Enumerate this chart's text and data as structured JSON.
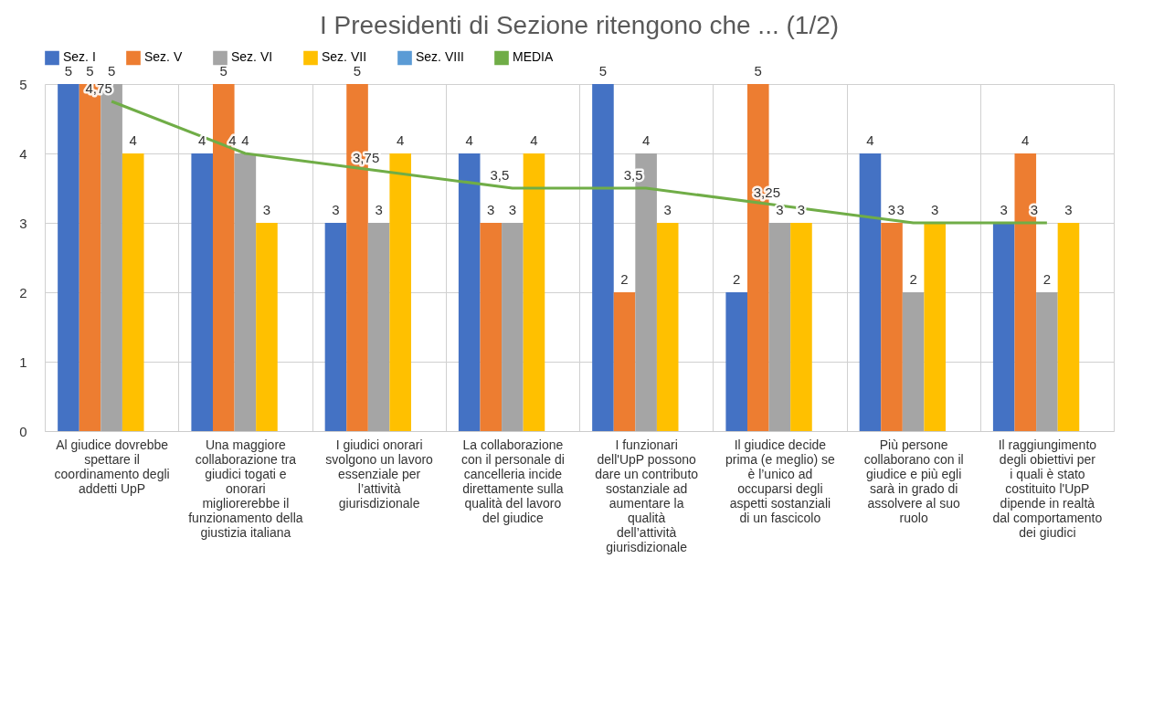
{
  "chart_data": {
    "type": "bar",
    "title": "I Preesidenti di Sezione ritengono che ... (1/2)",
    "categories": [
      "Al giudice dovrebbe spettare il coordinamento degli addetti UpP",
      "Una maggiore collaborazione tra giudici togati e onorari migliorerebbe il funzionamento della giustizia italiana",
      "I giudici onorari svolgono un lavoro essenziale per l’attività giurisdizionale",
      "La collaborazione con il personale di cancelleria incide direttamente sulla qualità del lavoro del giudice",
      "I funzionari dell'UpP possono dare un contributo sostanziale ad aumentare la qualità dell’attività giurisdizionale",
      "Il giudice decide prima (e meglio) se è l’unico ad occuparsi degli aspetti sostanziali di un fascicolo",
      "Più persone collaborano con il giudice e più egli sarà in grado di assolvere al suo ruolo",
      "Il raggiungimento degli obiettivi per i quali è stato costituito l'UpP dipende in realtà dal comportamento dei giudici"
    ],
    "series": [
      {
        "name": "Sez. I",
        "color": "#4472c4",
        "values": [
          5,
          4,
          3,
          4,
          5,
          2,
          4,
          3
        ],
        "value_labels": [
          "5",
          "4",
          "3",
          "4",
          "5",
          "2",
          "4",
          "3"
        ]
      },
      {
        "name": "Sez. V",
        "color": "#ed7d31",
        "values": [
          5,
          5,
          5,
          3,
          2,
          5,
          3,
          4
        ],
        "value_labels": [
          "5",
          "5",
          "5",
          "3",
          "2",
          "5",
          "3",
          "4"
        ]
      },
      {
        "name": "Sez. VI",
        "color": "#a5a5a5",
        "values": [
          5,
          4,
          3,
          3,
          4,
          3,
          2,
          2
        ],
        "value_labels": [
          "5",
          "4",
          "3",
          "3",
          "4",
          "3",
          "2",
          "2"
        ]
      },
      {
        "name": "Sez. VII",
        "color": "#ffc000",
        "values": [
          4,
          3,
          4,
          4,
          3,
          3,
          3,
          3
        ],
        "value_labels": [
          "4",
          "3",
          "4",
          "4",
          "3",
          "3",
          "3",
          "3"
        ]
      },
      {
        "name": "Sez. VIII",
        "color": "#5b9bd5",
        "values": [
          null,
          null,
          null,
          null,
          null,
          null,
          null,
          null
        ]
      },
      {
        "name": "MEDIA",
        "type": "line",
        "color": "#70ad47",
        "values": [
          4.75,
          4,
          3.75,
          3.5,
          3.5,
          3.25,
          3,
          3
        ],
        "value_labels": [
          "4,75",
          "4",
          "3,75",
          "3,5",
          "3,5",
          "3,25",
          "3",
          "3"
        ]
      }
    ],
    "ylim": [
      0,
      5
    ],
    "yticks": [
      0,
      1,
      2,
      3,
      4,
      5
    ],
    "grid": true,
    "legend": "top",
    "marker": "none"
  }
}
